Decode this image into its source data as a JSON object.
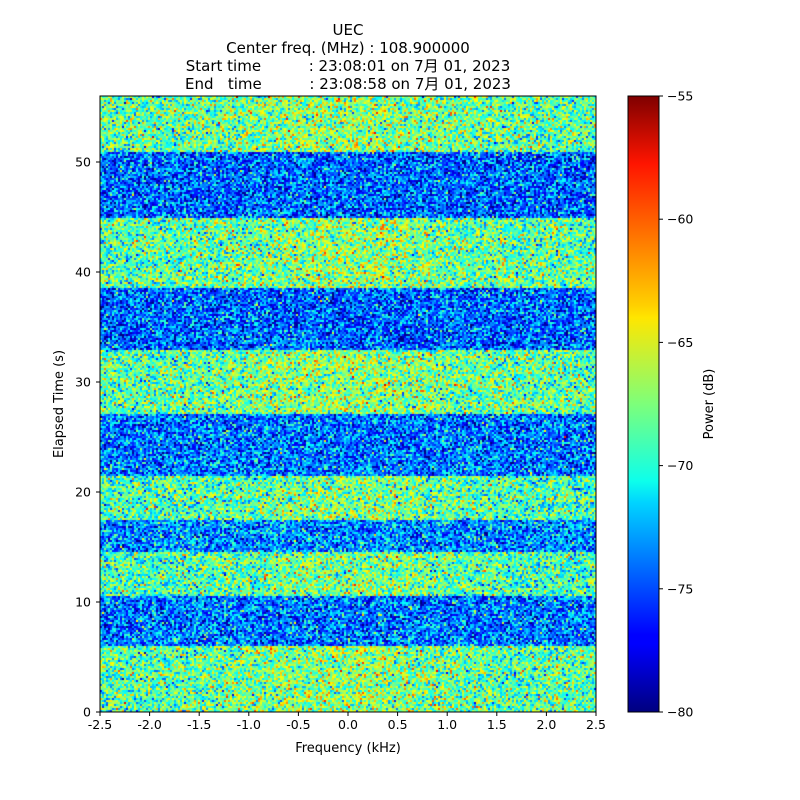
{
  "chart_data": {
    "type": "heatmap",
    "title": "UEC",
    "subtitle_lines": [
      "Center freq. (MHz) : 108.900000",
      "Start time          : 23:08:01 on 7月 01, 2023",
      "End   time          : 23:08:58 on 7月 01, 2023"
    ],
    "xlabel": "Frequency (kHz)",
    "ylabel": "Elapsed Time (s)",
    "xlim": [
      -2.5,
      2.5
    ],
    "ylim": [
      0,
      56
    ],
    "xticks": [
      -2.5,
      -2.0,
      -1.5,
      -1.0,
      -0.5,
      0.0,
      0.5,
      1.0,
      1.5,
      2.0,
      2.5
    ],
    "xtick_labels": [
      "-2.5",
      "-2.0",
      "-1.5",
      "-1.0",
      "-0.5",
      "0.0",
      "0.5",
      "1.0",
      "1.5",
      "2.0",
      "2.5"
    ],
    "yticks": [
      0,
      10,
      20,
      30,
      40,
      50
    ],
    "ytick_labels": [
      "0",
      "10",
      "20",
      "30",
      "40",
      "50"
    ],
    "colormap": "jet",
    "colorbar": {
      "label": "Power (dB)",
      "range": [
        -80,
        -55
      ],
      "ticks": [
        -80,
        -75,
        -70,
        -65,
        -60,
        -55
      ],
      "tick_labels": [
        "−80",
        "−75",
        "−70",
        "−65",
        "−60",
        "−55"
      ]
    },
    "time_bands": [
      {
        "t_start": 0,
        "t_end": 6,
        "mean_db": -68.5
      },
      {
        "t_start": 6,
        "t_end": 10.5,
        "mean_db": -74.0
      },
      {
        "t_start": 10.5,
        "t_end": 14.5,
        "mean_db": -69.0
      },
      {
        "t_start": 14.5,
        "t_end": 17.5,
        "mean_db": -73.5
      },
      {
        "t_start": 17.5,
        "t_end": 21.5,
        "mean_db": -69.0
      },
      {
        "t_start": 21.5,
        "t_end": 27,
        "mean_db": -74.0
      },
      {
        "t_start": 27,
        "t_end": 33,
        "mean_db": -68.5
      },
      {
        "t_start": 33,
        "t_end": 38.5,
        "mean_db": -74.5
      },
      {
        "t_start": 38.5,
        "t_end": 45,
        "mean_db": -68.5
      },
      {
        "t_start": 45,
        "t_end": 51,
        "mean_db": -74.5
      },
      {
        "t_start": 51,
        "t_end": 56,
        "mean_db": -68.5
      }
    ],
    "center_boost_db": 1.5,
    "noise_std_db": 3.0
  }
}
